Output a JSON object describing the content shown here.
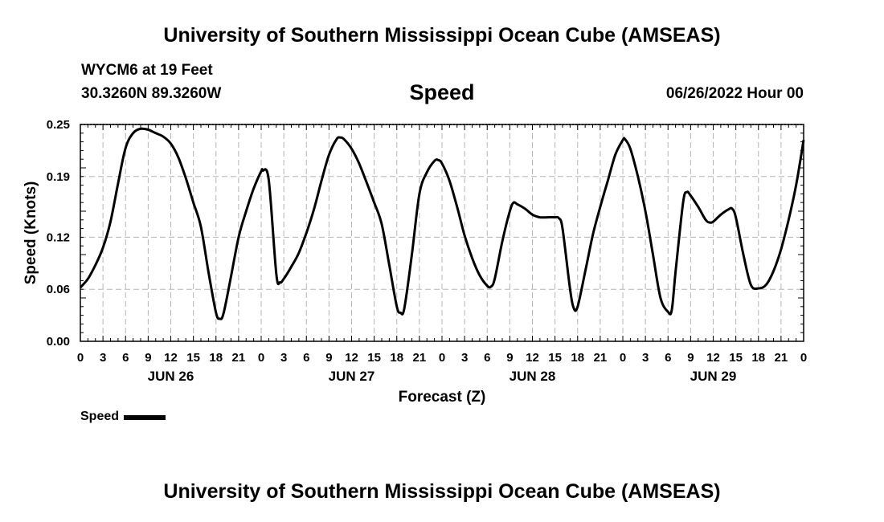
{
  "header": {
    "title": "University of Southern Mississippi Ocean Cube (AMSEAS)",
    "station": "WYCM6 at 19 Feet",
    "coords": "30.3260N  89.3260W",
    "chart_title": "Speed",
    "date": "06/26/2022 Hour 00"
  },
  "footer": {
    "title": "University of Southern Mississippi Ocean Cube (AMSEAS)"
  },
  "legend": {
    "label": "Speed"
  },
  "chart_data": {
    "type": "line",
    "title": "Speed",
    "xlabel": "Forecast (Z)",
    "ylabel": "Speed (Knots)",
    "xlim": [
      0,
      96
    ],
    "ylim": [
      0,
      0.25
    ],
    "yticks": [
      0.0,
      0.06,
      0.12,
      0.19,
      0.25
    ],
    "ytick_labels": [
      "0.00",
      "0.06",
      "0.12",
      "0.19",
      "0.25"
    ],
    "xtick_labels": [
      "0",
      "3",
      "6",
      "9",
      "12",
      "15",
      "18",
      "21",
      "0",
      "3",
      "6",
      "9",
      "12",
      "15",
      "18",
      "21",
      "0",
      "3",
      "6",
      "9",
      "12",
      "15",
      "18",
      "21",
      "0",
      "3",
      "6",
      "9",
      "12",
      "15",
      "18",
      "21",
      "0"
    ],
    "day_labels": [
      {
        "hour": 12,
        "label": "JUN 26"
      },
      {
        "hour": 36,
        "label": "JUN 27"
      },
      {
        "hour": 60,
        "label": "JUN 28"
      },
      {
        "hour": 84,
        "label": "JUN 29"
      }
    ],
    "grid": true,
    "series": [
      {
        "name": "Speed",
        "color": "#000000",
        "points": [
          [
            0,
            0.062
          ],
          [
            1,
            0.072
          ],
          [
            2,
            0.088
          ],
          [
            3,
            0.108
          ],
          [
            4,
            0.138
          ],
          [
            5,
            0.182
          ],
          [
            6,
            0.223
          ],
          [
            7,
            0.24
          ],
          [
            8,
            0.245
          ],
          [
            9,
            0.244
          ],
          [
            10,
            0.24
          ],
          [
            11,
            0.236
          ],
          [
            12,
            0.228
          ],
          [
            13,
            0.212
          ],
          [
            14,
            0.188
          ],
          [
            15,
            0.16
          ],
          [
            16,
            0.132
          ],
          [
            17,
            0.08
          ],
          [
            18,
            0.033
          ],
          [
            18.5,
            0.026
          ],
          [
            19,
            0.032
          ],
          [
            20,
            0.075
          ],
          [
            21,
            0.12
          ],
          [
            22,
            0.15
          ],
          [
            23,
            0.176
          ],
          [
            24,
            0.196
          ],
          [
            24.2,
            0.197
          ],
          [
            25,
            0.186
          ],
          [
            26,
            0.078
          ],
          [
            26.5,
            0.068
          ],
          [
            27,
            0.072
          ],
          [
            28,
            0.086
          ],
          [
            29,
            0.102
          ],
          [
            30,
            0.125
          ],
          [
            31,
            0.152
          ],
          [
            32,
            0.185
          ],
          [
            33,
            0.215
          ],
          [
            34,
            0.233
          ],
          [
            34.5,
            0.235
          ],
          [
            35,
            0.233
          ],
          [
            36,
            0.222
          ],
          [
            37,
            0.205
          ],
          [
            38,
            0.183
          ],
          [
            39,
            0.16
          ],
          [
            40,
            0.135
          ],
          [
            41,
            0.088
          ],
          [
            42,
            0.04
          ],
          [
            42.5,
            0.033
          ],
          [
            43,
            0.038
          ],
          [
            44,
            0.1
          ],
          [
            45,
            0.17
          ],
          [
            46,
            0.195
          ],
          [
            47,
            0.208
          ],
          [
            47.5,
            0.209
          ],
          [
            48,
            0.205
          ],
          [
            49,
            0.185
          ],
          [
            50,
            0.155
          ],
          [
            51,
            0.122
          ],
          [
            52,
            0.096
          ],
          [
            53,
            0.076
          ],
          [
            54,
            0.064
          ],
          [
            54.5,
            0.063
          ],
          [
            55,
            0.072
          ],
          [
            56,
            0.115
          ],
          [
            57,
            0.15
          ],
          [
            57.5,
            0.16
          ],
          [
            58,
            0.158
          ],
          [
            59,
            0.153
          ],
          [
            60,
            0.146
          ],
          [
            61,
            0.143
          ],
          [
            62,
            0.143
          ],
          [
            63,
            0.143
          ],
          [
            63.5,
            0.142
          ],
          [
            64,
            0.13
          ],
          [
            65,
            0.06
          ],
          [
            65.5,
            0.038
          ],
          [
            66,
            0.04
          ],
          [
            67,
            0.08
          ],
          [
            68,
            0.122
          ],
          [
            69,
            0.155
          ],
          [
            70,
            0.185
          ],
          [
            71,
            0.215
          ],
          [
            72,
            0.232
          ],
          [
            72.3,
            0.233
          ],
          [
            73,
            0.222
          ],
          [
            74,
            0.19
          ],
          [
            75,
            0.15
          ],
          [
            76,
            0.1
          ],
          [
            77,
            0.05
          ],
          [
            78,
            0.034
          ],
          [
            78.5,
            0.036
          ],
          [
            79,
            0.08
          ],
          [
            80,
            0.16
          ],
          [
            80.5,
            0.172
          ],
          [
            81,
            0.168
          ],
          [
            82,
            0.155
          ],
          [
            83,
            0.14
          ],
          [
            83.5,
            0.137
          ],
          [
            84,
            0.138
          ],
          [
            85,
            0.146
          ],
          [
            86,
            0.152
          ],
          [
            86.5,
            0.153
          ],
          [
            87,
            0.143
          ],
          [
            88,
            0.1
          ],
          [
            89,
            0.065
          ],
          [
            90,
            0.061
          ],
          [
            91,
            0.065
          ],
          [
            92,
            0.081
          ],
          [
            93,
            0.106
          ],
          [
            94,
            0.14
          ],
          [
            95,
            0.18
          ],
          [
            96,
            0.232
          ]
        ]
      }
    ]
  }
}
